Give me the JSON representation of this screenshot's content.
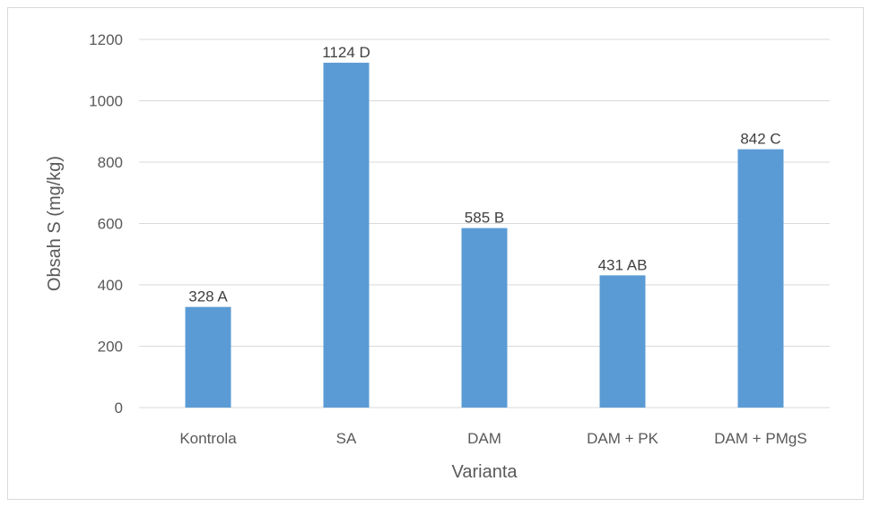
{
  "chart_data": {
    "type": "bar",
    "categories": [
      "Kontrola",
      "SA",
      "DAM",
      "DAM + PK",
      "DAM + PMgS"
    ],
    "values": [
      328,
      1124,
      585,
      431,
      842
    ],
    "data_labels": [
      "328 A",
      "1124 D",
      "585 B",
      "431 AB",
      "842 C"
    ],
    "xlabel": "Varianta",
    "ylabel": "Obsah S (mg/kg)",
    "ylim": [
      0,
      1200
    ],
    "yticks": [
      0,
      200,
      400,
      600,
      800,
      1000,
      1200
    ],
    "grid": true,
    "bar_color": "#5b9bd5",
    "grid_color": "#d9d9d9",
    "legend": false
  }
}
